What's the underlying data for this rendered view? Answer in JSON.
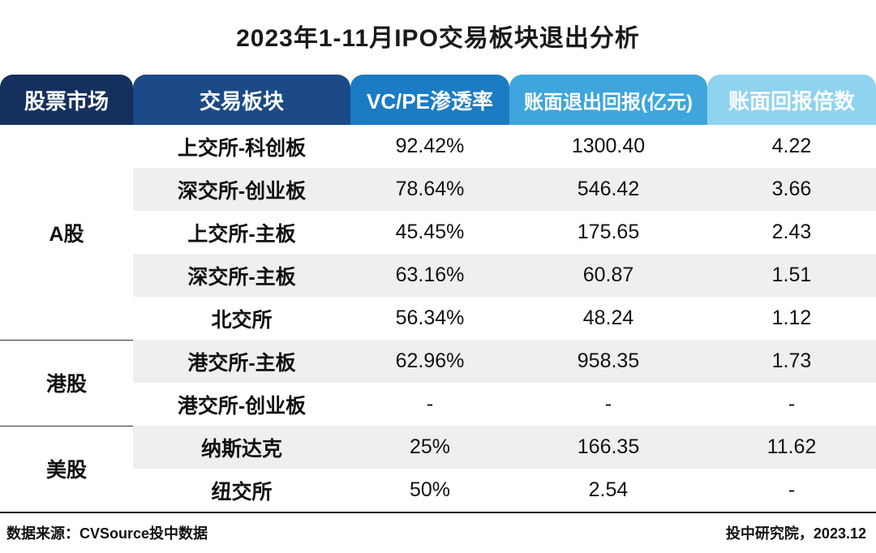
{
  "chart_data": {
    "type": "table",
    "title": "2023年1-11月IPO交易板块退出分析",
    "columns": [
      "股票市场",
      "交易板块",
      "VC/PE渗透率",
      "账面退出回报(亿元)",
      "账面回报倍数"
    ],
    "groups": [
      {
        "market": "A股",
        "rows": [
          {
            "board": "上交所-科创板",
            "penetration": "92.42%",
            "return": "1300.40",
            "multiple": "4.22"
          },
          {
            "board": "深交所-创业板",
            "penetration": "78.64%",
            "return": "546.42",
            "multiple": "3.66"
          },
          {
            "board": "上交所-主板",
            "penetration": "45.45%",
            "return": "175.65",
            "multiple": "2.43"
          },
          {
            "board": "深交所-主板",
            "penetration": "63.16%",
            "return": "60.87",
            "multiple": "1.51"
          },
          {
            "board": "北交所",
            "penetration": "56.34%",
            "return": "48.24",
            "multiple": "1.12"
          }
        ]
      },
      {
        "market": "港股",
        "rows": [
          {
            "board": "港交所-主板",
            "penetration": "62.96%",
            "return": "958.35",
            "multiple": "1.73"
          },
          {
            "board": "港交所-创业板",
            "penetration": "-",
            "return": "-",
            "multiple": "-"
          }
        ]
      },
      {
        "market": "美股",
        "rows": [
          {
            "board": "纳斯达克",
            "penetration": "25%",
            "return": "166.35",
            "multiple": "11.62"
          },
          {
            "board": "纽交所",
            "penetration": "50%",
            "return": "2.54",
            "multiple": "-"
          }
        ]
      }
    ],
    "source": "数据来源：CVSource投中数据",
    "credit": "投中研究院，2023.12",
    "header_colors": [
      "#15305e",
      "#1b4a86",
      "#1b7bc3",
      "#3ea6dc",
      "#8fd3ee"
    ],
    "stripe_color": "#efefef"
  }
}
